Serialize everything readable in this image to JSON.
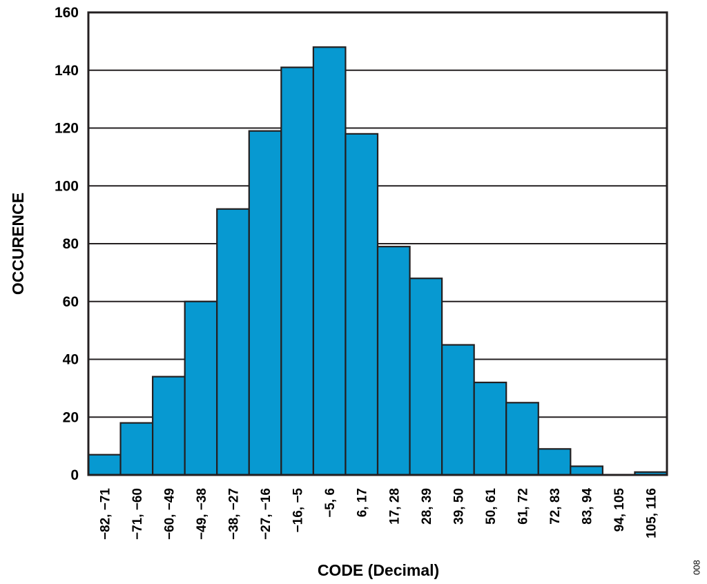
{
  "chart_data": {
    "type": "bar",
    "categories": [
      "−82, −71",
      "−71, −60",
      "−60, −49",
      "−49, −38",
      "−38, −27",
      "−27, −16",
      "−16, −5",
      "−5, 6",
      "6, 17",
      "17, 28",
      "28, 39",
      "39, 50",
      "50, 61",
      "61, 72",
      "72, 83",
      "83, 94",
      "94, 105",
      "105, 116"
    ],
    "values": [
      7,
      18,
      34,
      60,
      92,
      119,
      141,
      148,
      118,
      79,
      68,
      45,
      32,
      25,
      9,
      3,
      0,
      1
    ],
    "title": "",
    "xlabel": "CODE (Decimal)",
    "ylabel": "OCCURENCE",
    "ylim": [
      0,
      160
    ],
    "yticks": [
      0,
      20,
      40,
      60,
      80,
      100,
      120,
      140,
      160
    ],
    "grid": true,
    "bar_color": "#0799d1",
    "figure_code": "008"
  }
}
